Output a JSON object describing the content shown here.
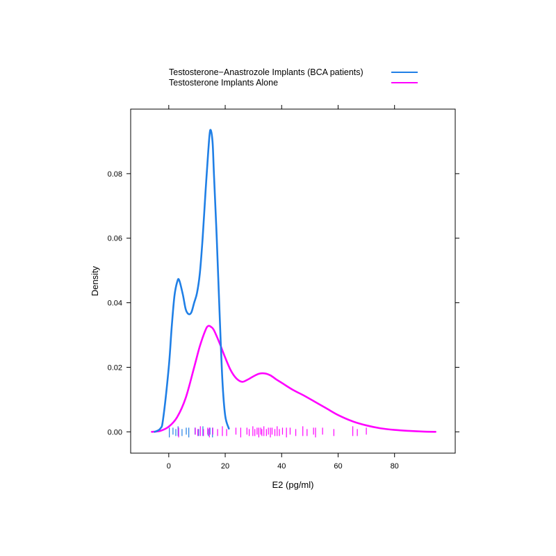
{
  "chart_data": {
    "type": "line",
    "subtype": "density",
    "xlabel": "E2 (pg/ml)",
    "ylabel": "Density",
    "xlim": [
      -13.5,
      101.5
    ],
    "ylim": [
      -0.0066,
      0.1
    ],
    "xticks": [
      0,
      20,
      40,
      60,
      80
    ],
    "xtick_labels": [
      "0",
      "20",
      "40",
      "60",
      "80"
    ],
    "yticks": [
      0.0,
      0.02,
      0.04,
      0.06,
      0.08
    ],
    "ytick_labels": [
      "0.00",
      "0.02",
      "0.04",
      "0.06",
      "0.08"
    ],
    "grid": false,
    "legend_position": "top",
    "series": [
      {
        "name": "Testosterone−Anastrozole Implants (BCA patients)",
        "color": "#1f7fe6",
        "x": [
          -5,
          -3,
          -2,
          0,
          1,
          2,
          3,
          3.7,
          5,
          6,
          7,
          8,
          9,
          10,
          11,
          12,
          13,
          14,
          14.7,
          15.5,
          16,
          17,
          18,
          19,
          20,
          21.3
        ],
        "y": [
          0.0,
          0.001,
          0.004,
          0.02,
          0.032,
          0.042,
          0.0465,
          0.047,
          0.0425,
          0.038,
          0.0365,
          0.037,
          0.04,
          0.043,
          0.049,
          0.06,
          0.074,
          0.087,
          0.0935,
          0.09,
          0.08,
          0.06,
          0.037,
          0.016,
          0.005,
          0.001
        ],
        "rug": [
          0.2,
          1.5,
          2.5,
          3.3,
          4.7,
          6.2,
          7.1,
          9.3,
          10.6,
          12.1,
          14.0,
          14.6,
          15.5
        ]
      },
      {
        "name": "Testosterone Implants Alone",
        "color": "#ff00ff",
        "x": [
          -6,
          -3,
          0,
          3,
          6,
          9,
          11,
          13,
          14,
          15,
          16,
          18,
          20,
          22,
          24,
          26,
          28,
          30,
          32,
          34,
          36,
          38,
          40,
          44,
          48,
          52,
          56,
          60,
          65,
          70,
          75,
          80,
          85,
          90,
          94.5
        ],
        "y": [
          0.0,
          0.0003,
          0.0016,
          0.0046,
          0.0105,
          0.02,
          0.0265,
          0.0315,
          0.0328,
          0.0325,
          0.0315,
          0.0275,
          0.023,
          0.019,
          0.0165,
          0.0155,
          0.0162,
          0.0172,
          0.018,
          0.0181,
          0.0175,
          0.0163,
          0.0152,
          0.013,
          0.0112,
          0.0092,
          0.0072,
          0.0052,
          0.0033,
          0.002,
          0.0011,
          0.0006,
          0.0003,
          0.0001,
          0.0
        ],
        "rug": [
          3.5,
          9.4,
          10.3,
          11.2,
          12.3,
          13.8,
          14.4,
          15.6,
          17.3,
          19.0,
          20.5,
          23.8,
          25.5,
          27.7,
          28.5,
          29.8,
          30.5,
          31.3,
          31.9,
          32.6,
          33.0,
          33.7,
          34.6,
          35.3,
          36.0,
          36.6,
          37.6,
          38.4,
          39.2,
          40.3,
          41.7,
          43.0,
          45.0,
          47.5,
          49.0,
          51.3,
          52.0,
          54.5,
          58.5,
          65.2,
          66.8,
          70.0
        ]
      }
    ]
  }
}
